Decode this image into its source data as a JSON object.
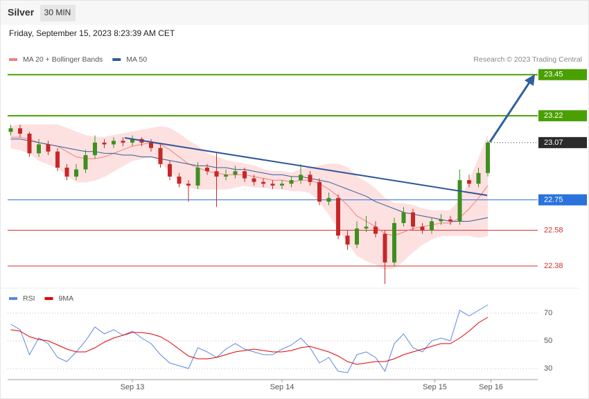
{
  "header": {
    "symbol": "Silver",
    "timeframe": "30 MIN",
    "timestamp": "Friday, September 15, 2023 8:23:39 AM CET",
    "credit": "Research © 2023 Trading Central"
  },
  "chart_data": [
    {
      "type": "candlestick",
      "x": [
        0,
        3,
        6,
        9,
        12,
        15,
        18,
        21,
        24,
        27,
        30,
        33,
        36,
        39,
        42,
        45,
        48,
        51,
        54,
        57,
        60,
        63,
        66,
        69,
        72,
        75,
        78,
        81,
        84,
        87,
        90,
        93,
        96,
        99,
        102,
        105,
        108,
        111,
        114,
        117,
        120,
        123,
        126,
        129,
        132,
        135,
        138,
        141,
        144,
        147,
        150,
        153
      ],
      "open": [
        23.13,
        23.15,
        23.12,
        23.01,
        23.06,
        23.02,
        22.93,
        22.88,
        22.92,
        23.0,
        23.07,
        23.06,
        23.08,
        23.07,
        23.09,
        23.07,
        23.04,
        22.95,
        22.88,
        22.84,
        22.83,
        22.93,
        22.91,
        22.88,
        22.89,
        22.91,
        22.87,
        22.85,
        22.84,
        22.83,
        22.84,
        22.86,
        22.89,
        22.85,
        22.74,
        22.76,
        22.55,
        22.5,
        22.59,
        22.6,
        22.56,
        22.4,
        22.62,
        22.68,
        22.6,
        22.58,
        22.63,
        22.64,
        22.63,
        22.86,
        22.84,
        22.9
      ],
      "high": [
        23.17,
        23.17,
        23.13,
        23.09,
        23.08,
        23.04,
        22.95,
        22.95,
        23.03,
        23.11,
        23.09,
        23.1,
        23.1,
        23.11,
        23.1,
        23.09,
        23.06,
        22.97,
        22.9,
        22.86,
        22.96,
        22.95,
        23.01,
        22.92,
        22.94,
        22.93,
        22.89,
        22.87,
        22.86,
        22.86,
        22.88,
        22.95,
        22.91,
        22.87,
        22.79,
        22.78,
        22.58,
        22.63,
        22.66,
        22.63,
        22.58,
        22.65,
        22.71,
        22.7,
        22.62,
        22.65,
        22.67,
        22.66,
        22.92,
        22.89,
        22.93,
        23.08
      ],
      "low": [
        23.11,
        23.1,
        22.99,
        22.99,
        23.0,
        22.91,
        22.86,
        22.86,
        22.9,
        22.98,
        23.04,
        23.04,
        23.05,
        23.05,
        23.05,
        23.02,
        22.93,
        22.86,
        22.82,
        22.74,
        22.81,
        22.89,
        22.71,
        22.86,
        22.87,
        22.85,
        22.83,
        22.82,
        22.81,
        22.81,
        22.82,
        22.84,
        22.83,
        22.72,
        22.72,
        22.53,
        22.47,
        22.48,
        22.57,
        22.54,
        22.28,
        22.38,
        22.6,
        22.58,
        22.56,
        22.56,
        22.61,
        22.61,
        22.61,
        22.82,
        22.82,
        22.88
      ],
      "close": [
        23.15,
        23.12,
        23.01,
        23.06,
        23.02,
        22.93,
        22.88,
        22.92,
        23.0,
        23.07,
        23.06,
        23.08,
        23.07,
        23.09,
        23.07,
        23.04,
        22.95,
        22.88,
        22.84,
        22.83,
        22.93,
        22.91,
        22.88,
        22.89,
        22.91,
        22.87,
        22.85,
        22.84,
        22.83,
        22.84,
        22.86,
        22.89,
        22.85,
        22.74,
        22.76,
        22.55,
        22.5,
        22.59,
        22.6,
        22.56,
        22.4,
        22.62,
        22.68,
        22.6,
        22.58,
        22.63,
        22.64,
        22.63,
        22.86,
        22.84,
        22.9,
        23.07
      ],
      "up_color": "#3f8f1f",
      "down_color": "#c62828",
      "series": [
        {
          "name": "MA 20 + Bollinger Bands",
          "color": "#f08080",
          "band_color": "#fde0e0",
          "values": [
            23.1,
            23.1,
            23.09,
            23.07,
            23.06,
            23.05,
            23.02,
            22.99,
            22.98,
            22.98,
            22.99,
            23.01,
            23.03,
            23.05,
            23.06,
            23.07,
            23.06,
            23.03,
            22.99,
            22.95,
            22.93,
            22.91,
            22.9,
            22.89,
            22.89,
            22.89,
            22.88,
            22.87,
            22.86,
            22.86,
            22.85,
            22.86,
            22.86,
            22.84,
            22.81,
            22.77,
            22.72,
            22.66,
            22.63,
            22.6,
            22.56,
            22.55,
            22.57,
            22.59,
            22.6,
            22.61,
            22.62,
            22.62,
            22.65,
            22.7,
            22.76,
            22.83
          ],
          "upper": [
            23.16,
            23.17,
            23.17,
            23.17,
            23.17,
            23.17,
            23.15,
            23.13,
            23.11,
            23.1,
            23.1,
            23.11,
            23.12,
            23.13,
            23.14,
            23.15,
            23.16,
            23.15,
            23.12,
            23.08,
            23.05,
            23.01,
            22.99,
            22.97,
            22.96,
            22.95,
            22.94,
            22.92,
            22.91,
            22.91,
            22.9,
            22.92,
            22.93,
            22.94,
            22.95,
            22.95,
            22.93,
            22.88,
            22.85,
            22.81,
            22.76,
            22.73,
            22.73,
            22.72,
            22.7,
            22.69,
            22.69,
            22.69,
            22.75,
            22.85,
            22.98,
            23.11
          ],
          "lower": [
            23.04,
            23.03,
            23.01,
            22.97,
            22.95,
            22.93,
            22.89,
            22.85,
            22.85,
            22.86,
            22.88,
            22.91,
            22.94,
            22.97,
            22.98,
            22.99,
            22.96,
            22.91,
            22.86,
            22.82,
            22.81,
            22.81,
            22.81,
            22.81,
            22.82,
            22.83,
            22.82,
            22.82,
            22.81,
            22.81,
            22.8,
            22.8,
            22.79,
            22.74,
            22.67,
            22.59,
            22.51,
            22.44,
            22.41,
            22.39,
            22.36,
            22.37,
            22.41,
            22.46,
            22.5,
            22.53,
            22.55,
            22.55,
            22.55,
            22.55,
            22.54,
            22.55
          ]
        },
        {
          "name": "MA 50",
          "color": "#2f5f9e",
          "values": [
            23.09,
            23.09,
            23.08,
            23.07,
            23.06,
            23.05,
            23.04,
            23.03,
            23.02,
            23.02,
            23.01,
            23.01,
            23.0,
            23.0,
            22.99,
            22.99,
            22.98,
            22.97,
            22.96,
            22.95,
            22.94,
            22.94,
            22.93,
            22.93,
            22.92,
            22.92,
            22.91,
            22.9,
            22.89,
            22.89,
            22.88,
            22.88,
            22.87,
            22.86,
            22.85,
            22.83,
            22.81,
            22.79,
            22.77,
            22.74,
            22.72,
            22.7,
            22.68,
            22.67,
            22.66,
            22.65,
            22.64,
            22.63,
            22.63,
            22.63,
            22.64,
            22.65
          ]
        }
      ],
      "levels": [
        {
          "value": 23.45,
          "color": "#4aa000",
          "label_style": "box",
          "line": "solid"
        },
        {
          "value": 23.22,
          "color": "#4aa000",
          "label_style": "box",
          "line": "solid"
        },
        {
          "value": 23.07,
          "color": "#2b2b2b",
          "label_style": "box",
          "line": "dotted"
        },
        {
          "value": 22.75,
          "color": "#2a72dc",
          "label_style": "box",
          "line": "solid"
        },
        {
          "value": 22.58,
          "color": "#d32f2f",
          "label_style": "text",
          "line": "solid"
        },
        {
          "value": 22.38,
          "color": "#d32f2f",
          "label_style": "text",
          "line": "solid"
        }
      ],
      "xlim": [
        -1,
        169
      ],
      "ylim": [
        22.26,
        23.48
      ]
    },
    {
      "type": "line",
      "x": [
        0,
        3,
        6,
        9,
        12,
        15,
        18,
        21,
        24,
        27,
        30,
        33,
        36,
        39,
        42,
        45,
        48,
        51,
        54,
        57,
        60,
        63,
        66,
        69,
        72,
        75,
        78,
        81,
        84,
        87,
        90,
        93,
        96,
        99,
        102,
        105,
        108,
        111,
        114,
        117,
        120,
        123,
        126,
        129,
        132,
        135,
        138,
        141,
        144,
        147,
        150,
        153
      ],
      "series": [
        {
          "name": "RSI",
          "color": "#5b86e0",
          "values": [
            62,
            58,
            40,
            52,
            48,
            38,
            35,
            42,
            50,
            60,
            55,
            58,
            54,
            57,
            52,
            48,
            40,
            34,
            32,
            30,
            45,
            42,
            38,
            44,
            48,
            44,
            42,
            40,
            40,
            44,
            47,
            52,
            45,
            34,
            38,
            28,
            27,
            40,
            42,
            38,
            28,
            48,
            55,
            45,
            42,
            50,
            52,
            50,
            72,
            68,
            72,
            76
          ]
        },
        {
          "name": "9MA",
          "color": "#e00000",
          "values": [
            58,
            57,
            53,
            51,
            50,
            47,
            44,
            42,
            42,
            45,
            49,
            52,
            54,
            56,
            56,
            55,
            53,
            49,
            44,
            39,
            37,
            37,
            38,
            40,
            42,
            43,
            44,
            43,
            42,
            42,
            43,
            45,
            46,
            44,
            42,
            39,
            35,
            33,
            34,
            35,
            35,
            37,
            40,
            42,
            44,
            46,
            48,
            48,
            52,
            57,
            63,
            67
          ]
        }
      ],
      "xlim": [
        -1,
        169
      ],
      "ylim": [
        26,
        76
      ],
      "yticks": [
        30,
        50,
        70
      ],
      "grid": true,
      "xticks": [
        {
          "value": 39,
          "label": "Sep 13"
        },
        {
          "value": 87,
          "label": "Sep 14"
        },
        {
          "value": 136,
          "label": "Sep 15"
        },
        {
          "value": 154,
          "label": "Sep 16"
        }
      ]
    }
  ]
}
